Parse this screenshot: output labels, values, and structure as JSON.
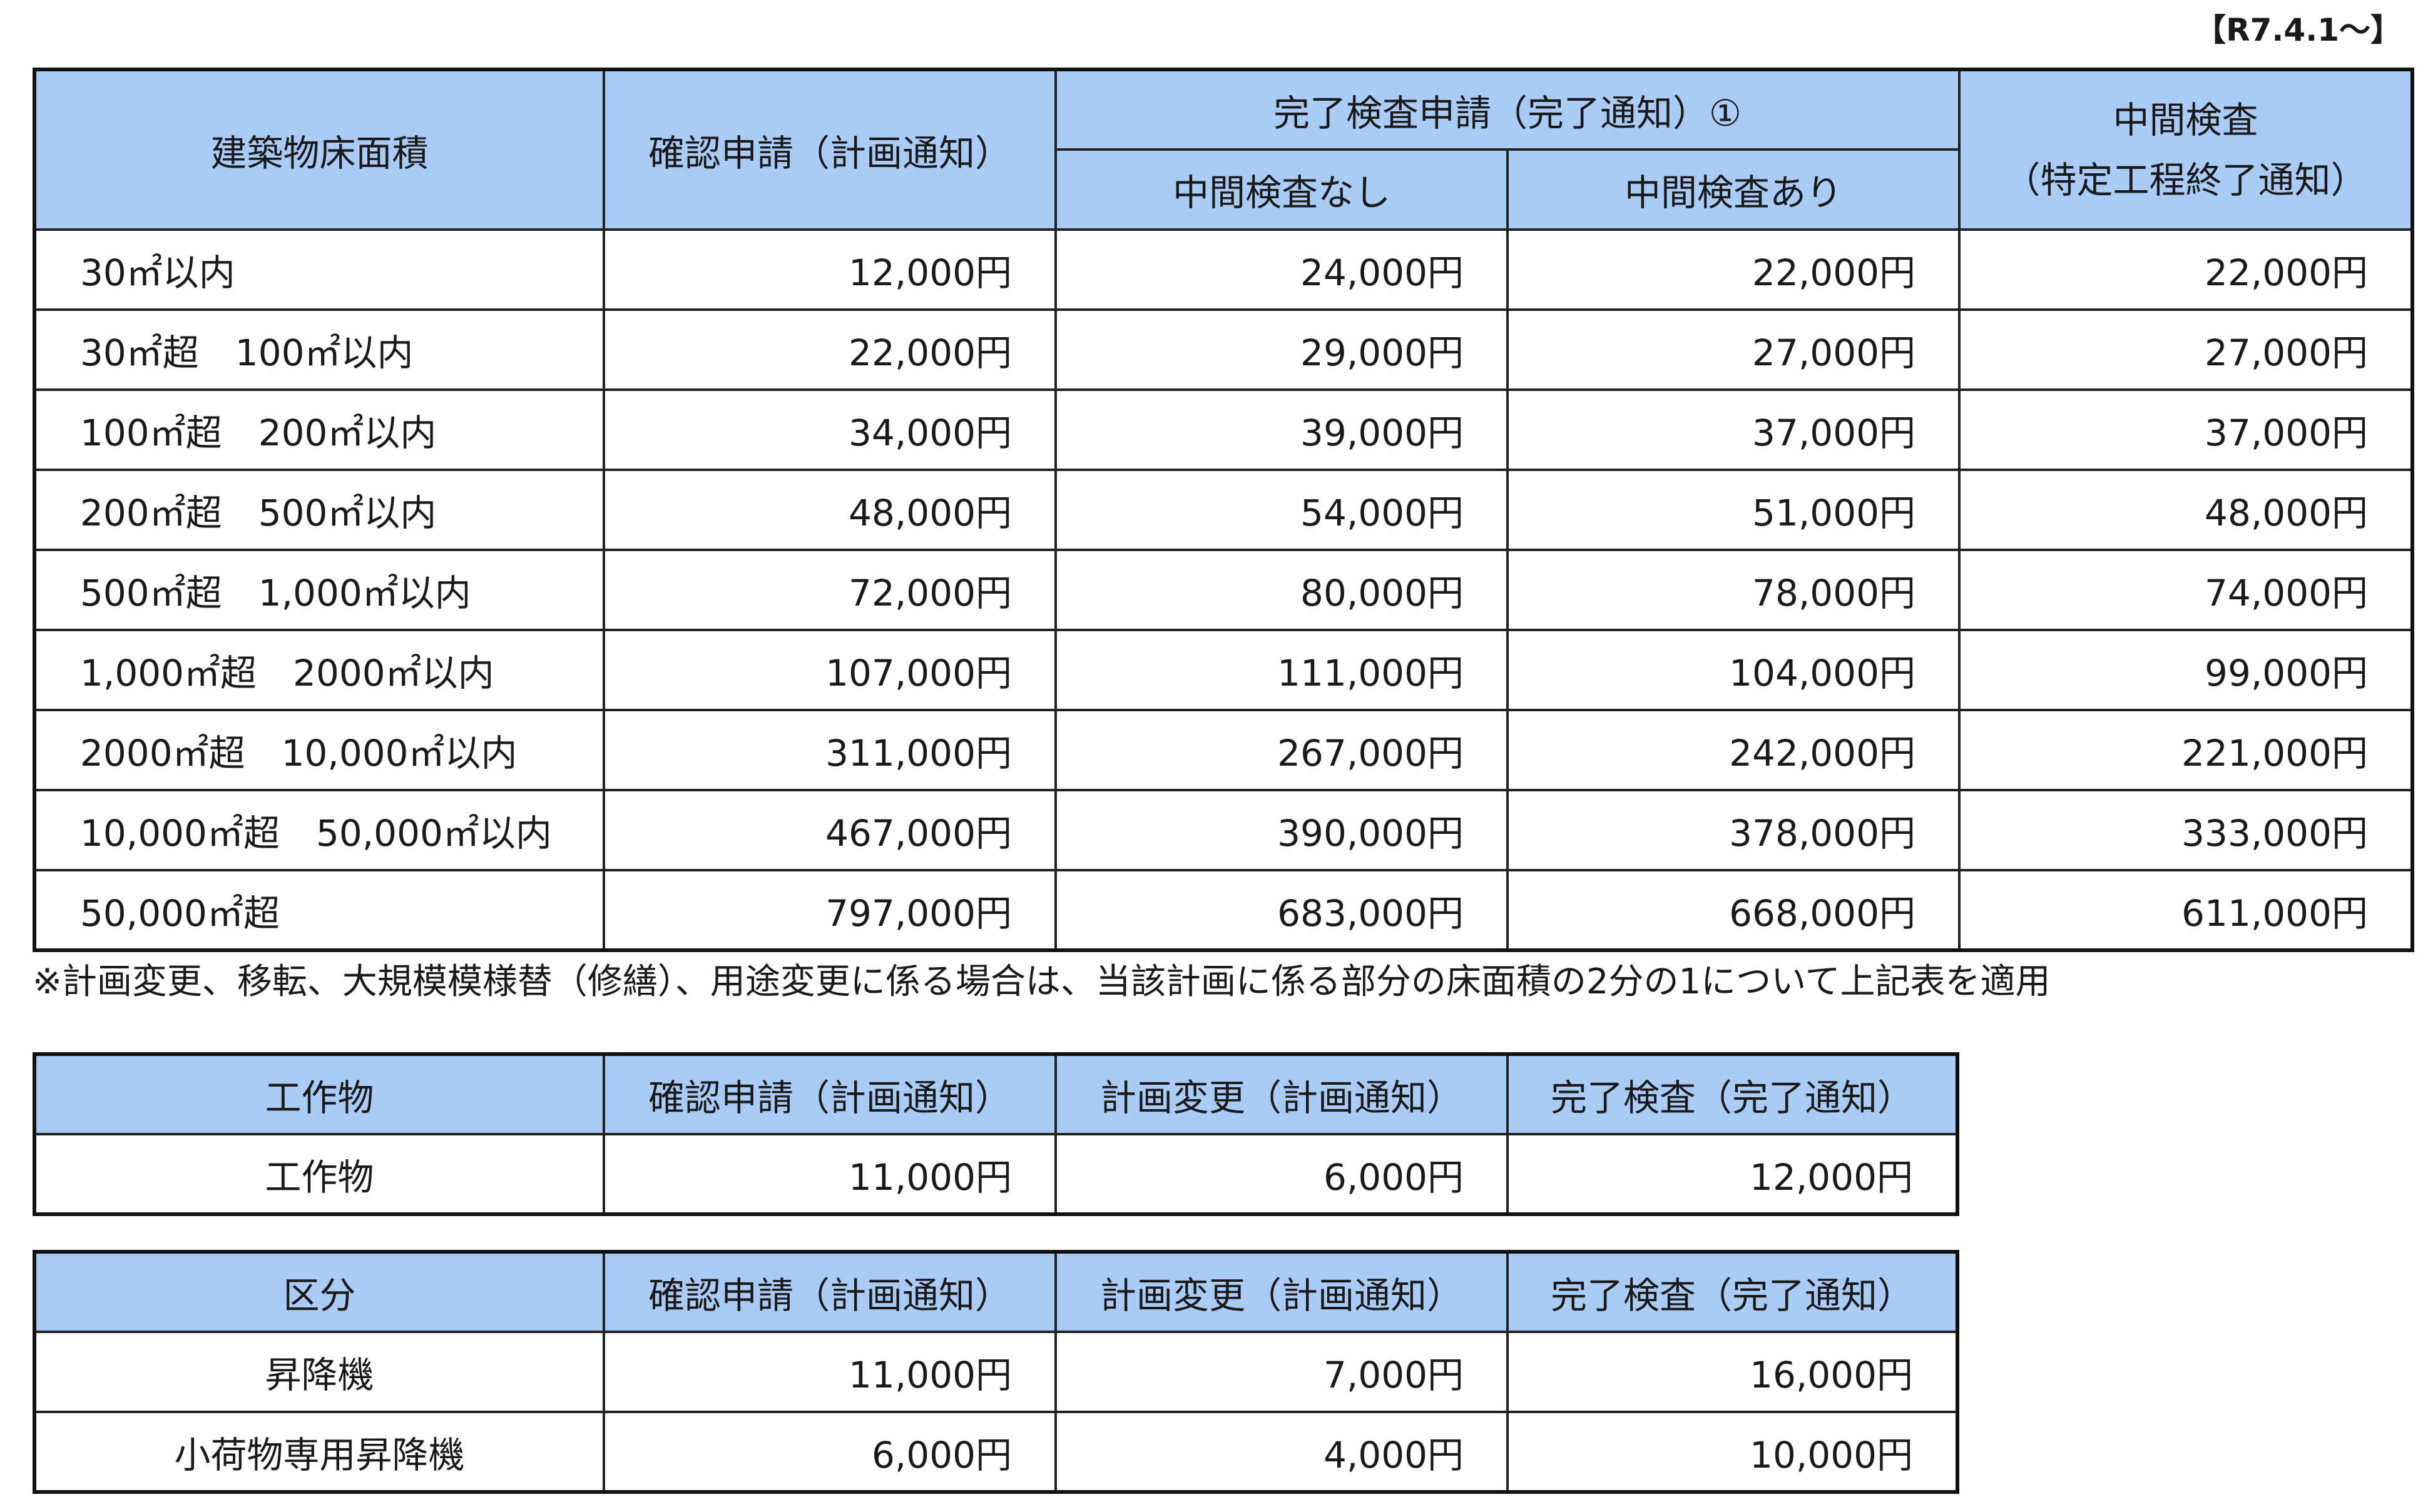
{
  "effective_date": "【R7.4.1～】",
  "main_table": {
    "headers": {
      "area": "建築物床面積",
      "confirm": "確認申請（計画通知）",
      "completion_group": "完了検査申請（完了通知）①",
      "completion_without_interim": "中間検査なし",
      "completion_with_interim": "中間検査あり",
      "interim_line1": "中間検査",
      "interim_line2": "（特定工程終了通知）"
    },
    "rows": [
      {
        "area": "30㎡以内",
        "confirm": "12,000円",
        "comp_no": "24,000円",
        "comp_yes": "22,000円",
        "interim": "22,000円"
      },
      {
        "area": "30㎡超　100㎡以内",
        "confirm": "22,000円",
        "comp_no": "29,000円",
        "comp_yes": "27,000円",
        "interim": "27,000円"
      },
      {
        "area": "100㎡超　200㎡以内",
        "confirm": "34,000円",
        "comp_no": "39,000円",
        "comp_yes": "37,000円",
        "interim": "37,000円"
      },
      {
        "area": "200㎡超　500㎡以内",
        "confirm": "48,000円",
        "comp_no": "54,000円",
        "comp_yes": "51,000円",
        "interim": "48,000円"
      },
      {
        "area": "500㎡超　1,000㎡以内",
        "confirm": "72,000円",
        "comp_no": "80,000円",
        "comp_yes": "78,000円",
        "interim": "74,000円"
      },
      {
        "area": "1,000㎡超　2000㎡以内",
        "confirm": "107,000円",
        "comp_no": "111,000円",
        "comp_yes": "104,000円",
        "interim": "99,000円"
      },
      {
        "area": "2000㎡超　10,000㎡以内",
        "confirm": "311,000円",
        "comp_no": "267,000円",
        "comp_yes": "242,000円",
        "interim": "221,000円"
      },
      {
        "area": "10,000㎡超　50,000㎡以内",
        "confirm": "467,000円",
        "comp_no": "390,000円",
        "comp_yes": "378,000円",
        "interim": "333,000円"
      },
      {
        "area": "50,000㎡超",
        "confirm": "797,000円",
        "comp_no": "683,000円",
        "comp_yes": "668,000円",
        "interim": "611,000円"
      }
    ]
  },
  "note": "※計画変更、移転、大規模模様替（修繕）、用途変更に係る場合は、当該計画に係る部分の床面積の2分の1について上記表を適用",
  "works_table": {
    "headers": {
      "category": "工作物",
      "confirm": "確認申請（計画通知）",
      "change": "計画変更（計画通知）",
      "completion": "完了検査（完了通知）"
    },
    "rows": [
      {
        "category": "工作物",
        "confirm": "11,000円",
        "change": "6,000円",
        "completion": "12,000円"
      }
    ]
  },
  "elevator_table": {
    "headers": {
      "category": "区分",
      "confirm": "確認申請（計画通知）",
      "change": "計画変更（計画通知）",
      "completion": "完了検査（完了通知）"
    },
    "rows": [
      {
        "category": "昇降機",
        "confirm": "11,000円",
        "change": "7,000円",
        "completion": "16,000円"
      },
      {
        "category": "小荷物専用昇降機",
        "confirm": "6,000円",
        "change": "4,000円",
        "completion": "10,000円"
      }
    ]
  },
  "colors": {
    "header_bg": "#a9cbf5",
    "border": "#222222"
  }
}
